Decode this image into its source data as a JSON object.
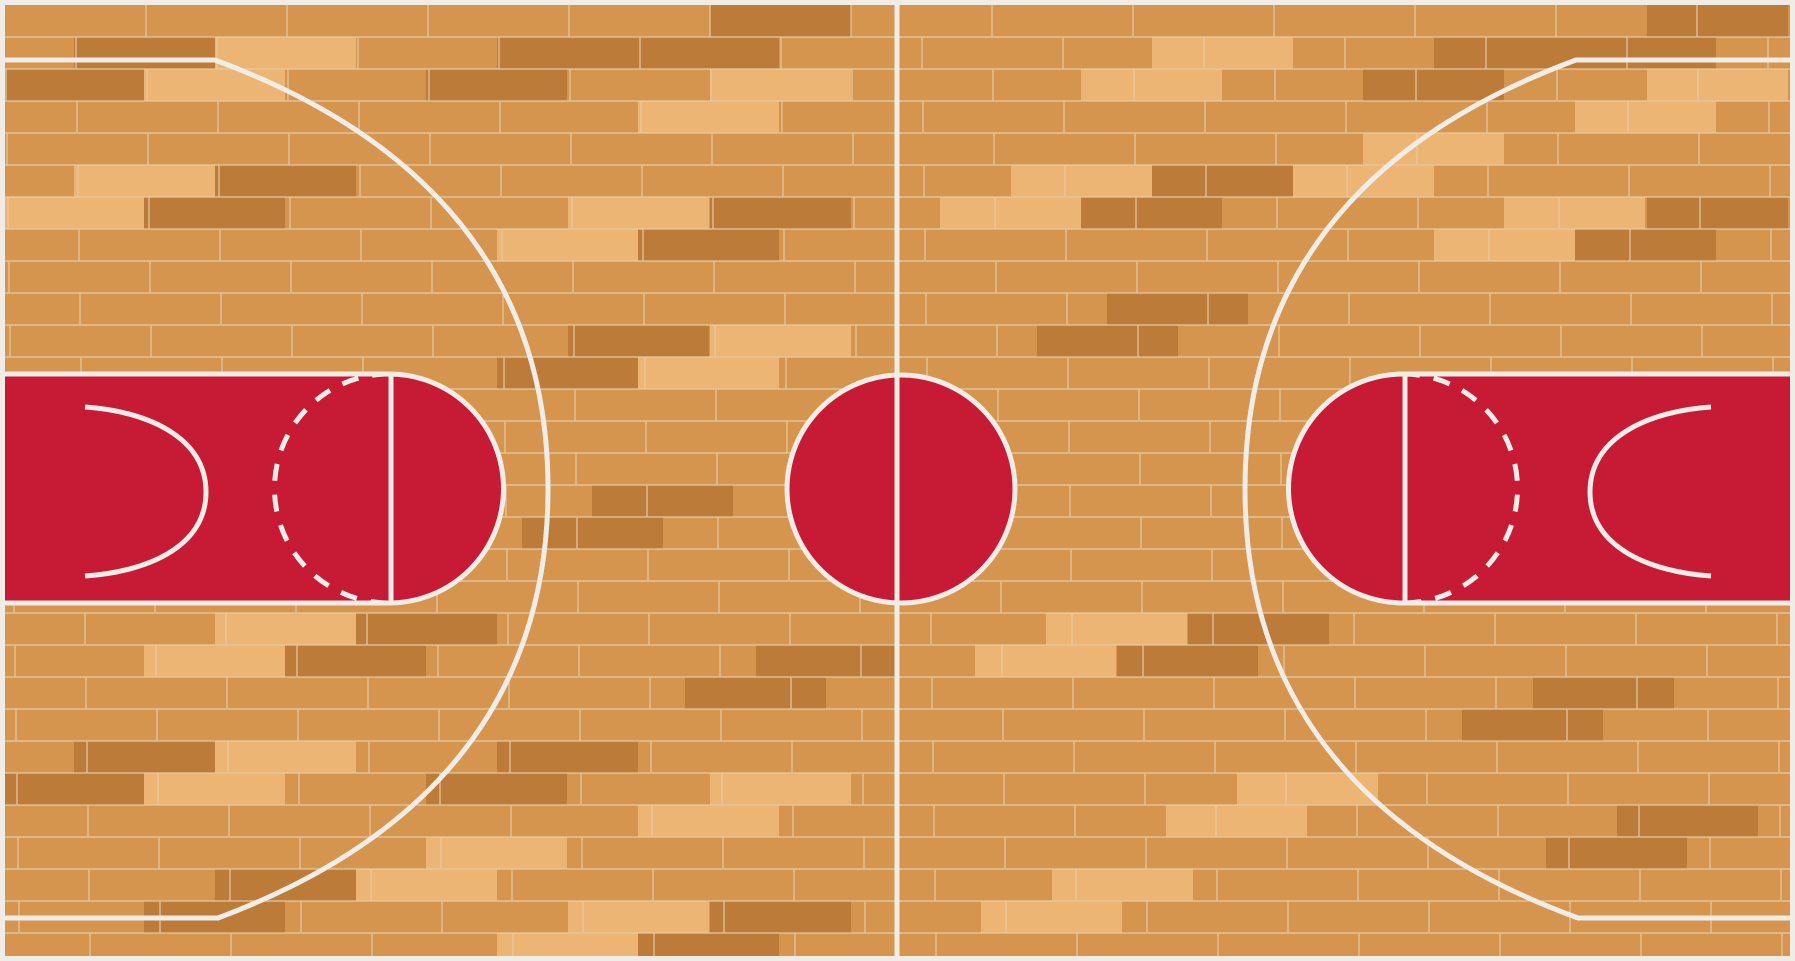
{
  "court": {
    "colors": {
      "wood_base": "#d6954f",
      "wood_dark": "#bc7b38",
      "wood_light": "#edb574",
      "seam": "#e7c9a0",
      "paint": "#c71a34",
      "line": "#f1ede6",
      "frame": "#f1ede6"
    },
    "line_style": {
      "solid": "solid",
      "dashed": "dashed"
    }
  }
}
